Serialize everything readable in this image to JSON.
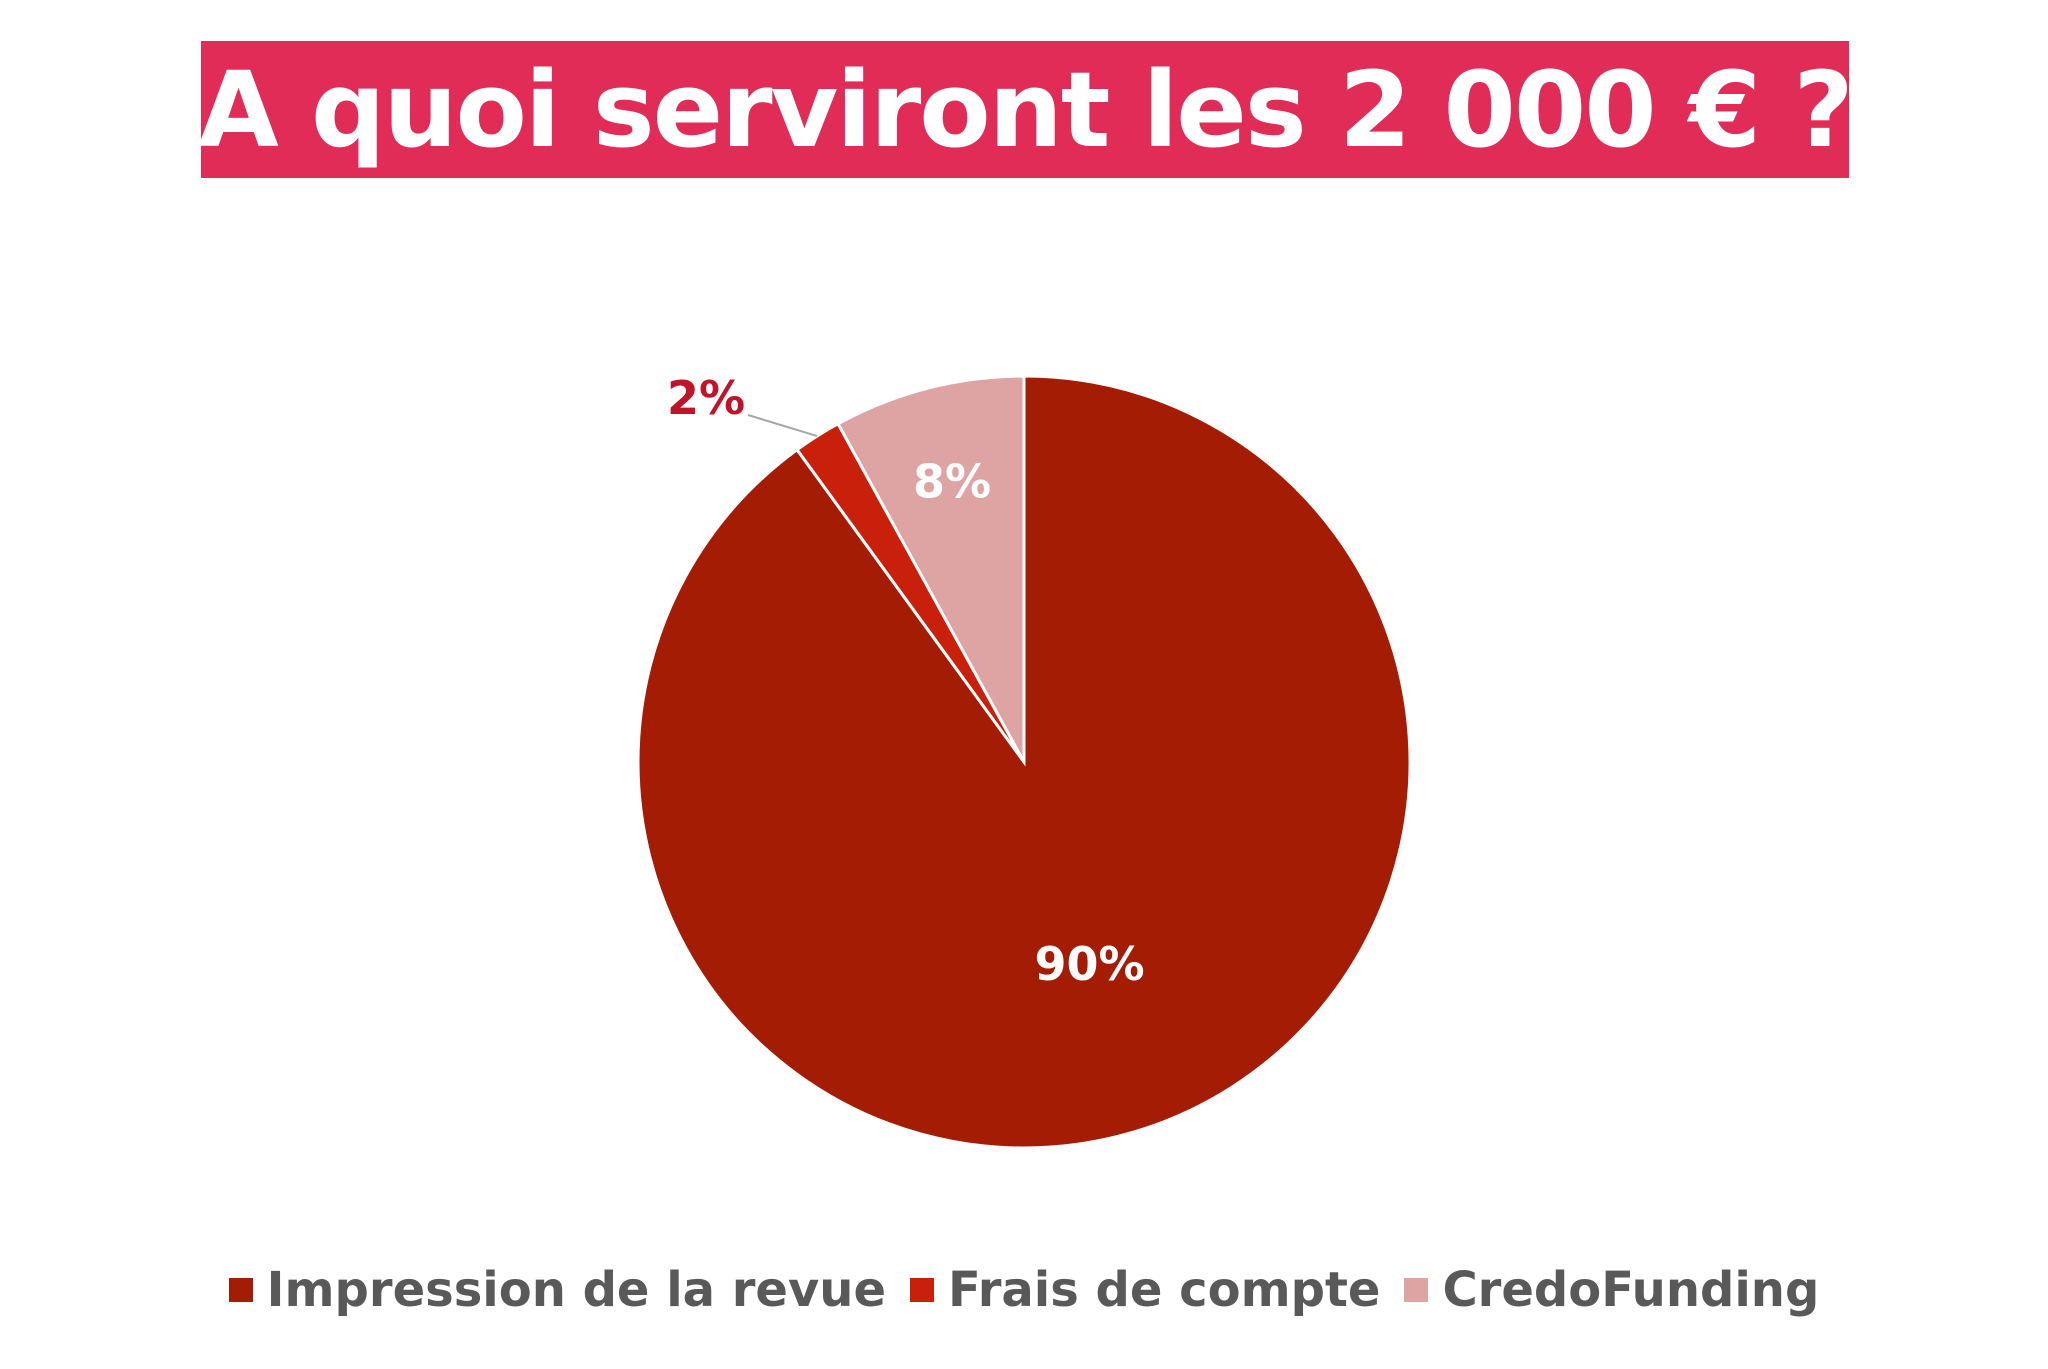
{
  "title": "A quoi serviront les 2 000 € ?",
  "colors": {
    "banner": "#e22c58",
    "title_text": "#ffffff",
    "legend_text": "#595959"
  },
  "chart_data": {
    "type": "pie",
    "title": "",
    "start_angle_deg": 0,
    "direction": "clockwise",
    "legend_position": "bottom",
    "slices": [
      {
        "name": "Impression de la revue",
        "value": 90,
        "label": "90%",
        "color": "#a51c05",
        "label_color": "#ffffff"
      },
      {
        "name": "Frais de compte",
        "value": 2,
        "label": "2%",
        "color": "#c8200a",
        "label_color": "#c0142a"
      },
      {
        "name": "CredoFunding",
        "value": 8,
        "label": "8%",
        "color": "#dea3a3",
        "label_color": "#ffffff"
      }
    ]
  }
}
